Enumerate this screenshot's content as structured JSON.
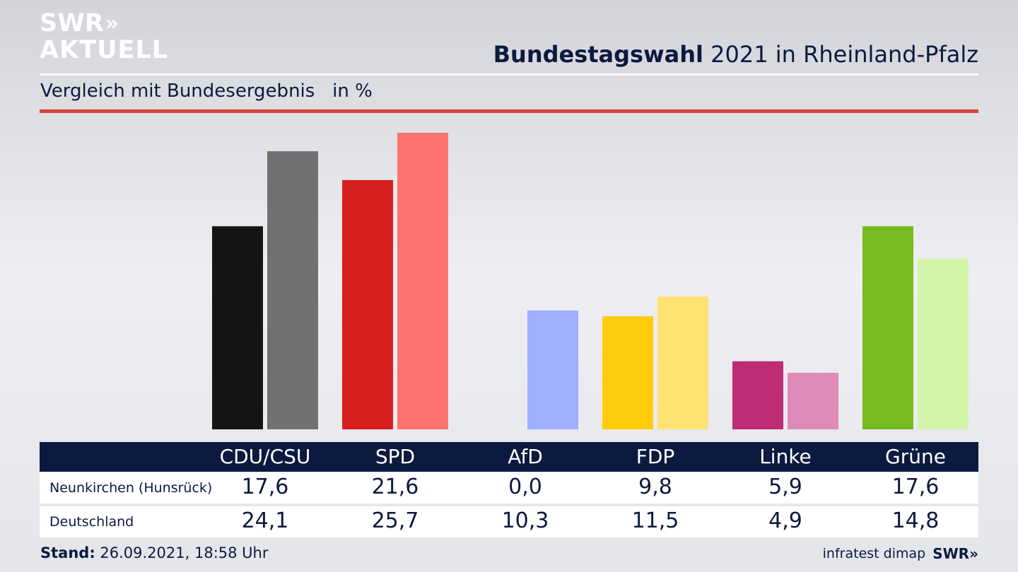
{
  "logo": {
    "line1": "SWR",
    "arrows": "»",
    "line2": "AKTUELL"
  },
  "header": {
    "title_bold": "Bundestagswahl",
    "title_rest": " 2021 in Rheinland-Pfalz"
  },
  "subtitle": {
    "text": "Vergleich mit Bundesergebnis",
    "unit": "in %"
  },
  "colors": {
    "navy": "#0c1a40",
    "accent_red": "#d5453b",
    "local": [
      "#141414",
      "#d71f1f",
      "#9fb0ff",
      "#fecc0b",
      "#bc2d75",
      "#76bb1f"
    ],
    "national": [
      "#737170",
      "#fe736d",
      "#9faeff",
      "#fee271",
      "#df8ab8",
      "#d3f5a9"
    ]
  },
  "chart_data": {
    "type": "bar",
    "categories": [
      "CDU/CSU",
      "SPD",
      "AfD",
      "FDP",
      "Linke",
      "Grüne"
    ],
    "series": [
      {
        "name": "Neunkirchen (Hunsrück)",
        "values": [
          17.6,
          21.6,
          0.0,
          9.8,
          5.9,
          17.6
        ]
      },
      {
        "name": "Deutschland",
        "values": [
          24.1,
          25.7,
          10.3,
          11.5,
          4.9,
          14.8
        ]
      }
    ],
    "ylim": [
      0,
      25.7
    ],
    "grid": false,
    "legend": "table-below"
  },
  "footer": {
    "stand_label": "Stand:",
    "stand_value": " 26.09.2021, 18:58 Uhr",
    "source": "infratest dimap",
    "brand": "SWR",
    "brand_arrows": "»"
  }
}
